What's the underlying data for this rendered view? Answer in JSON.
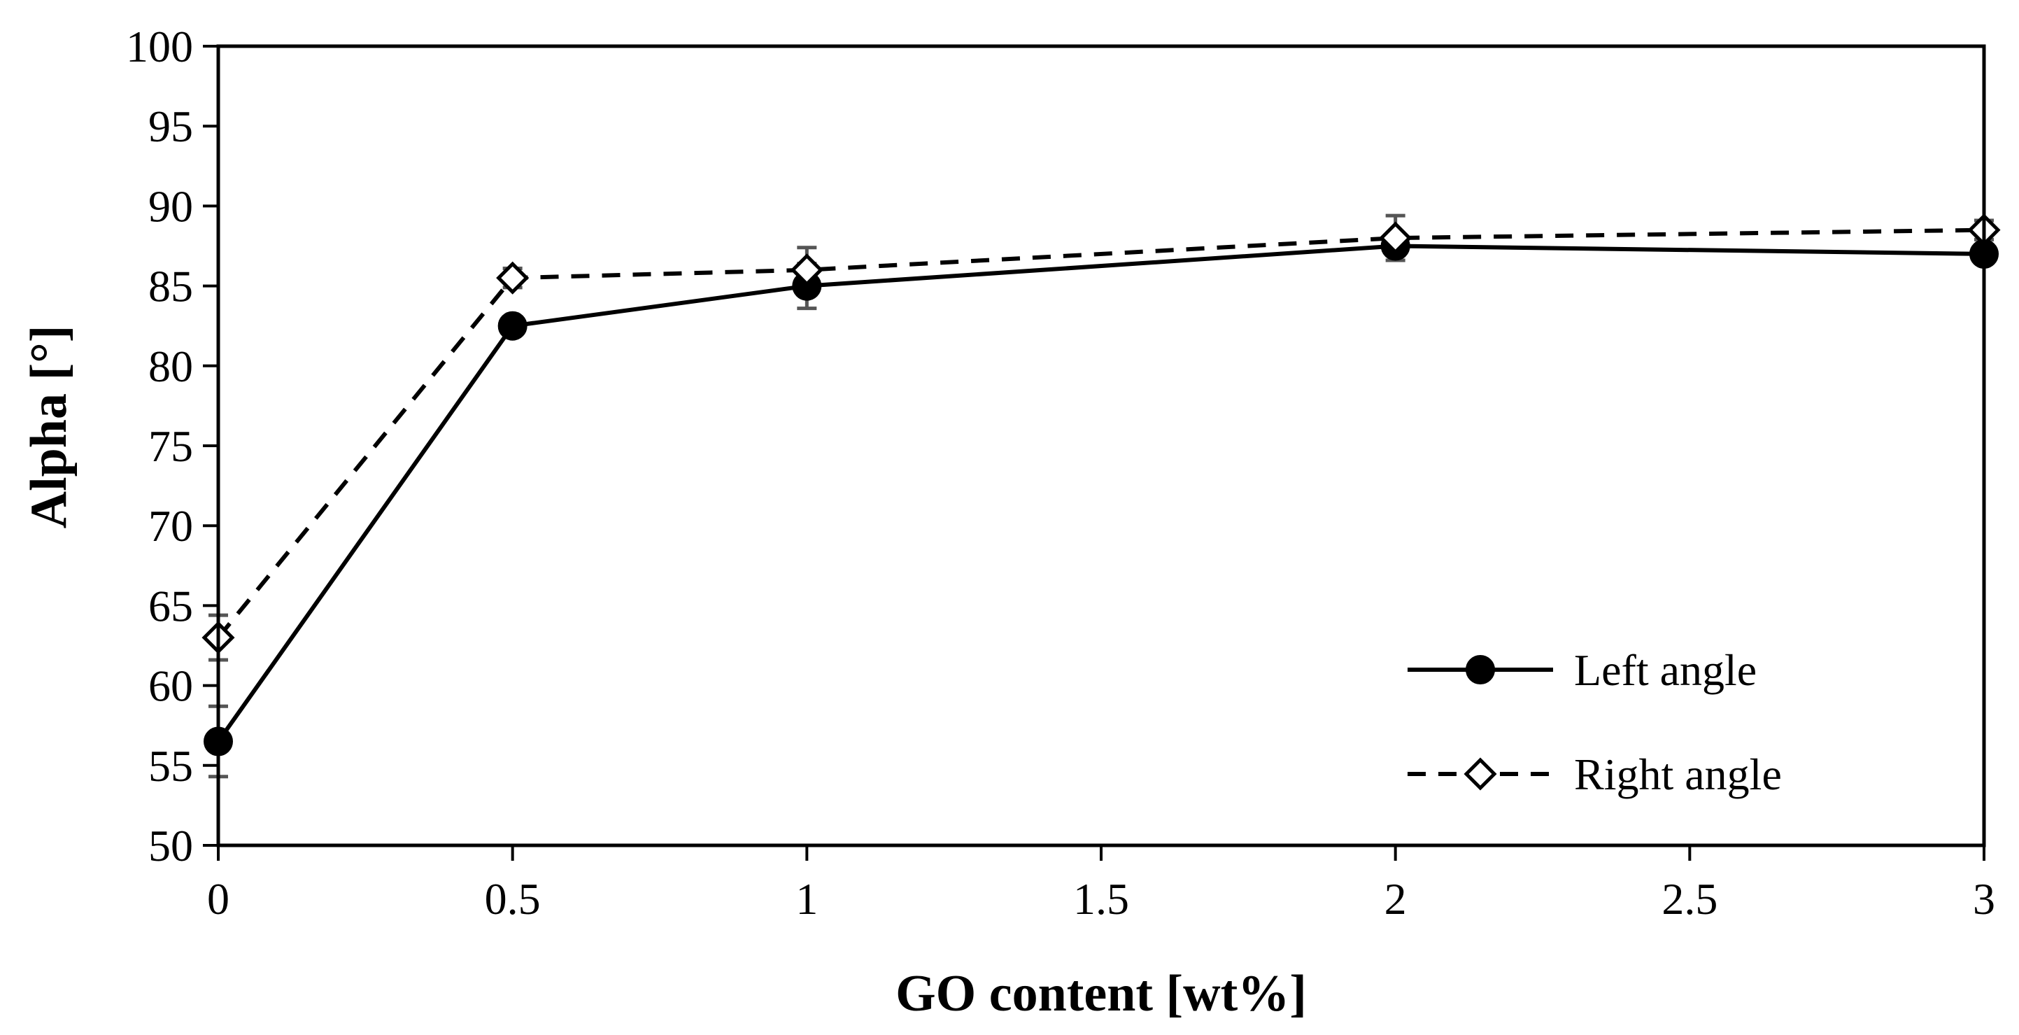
{
  "chart_data": {
    "type": "line",
    "title": "",
    "xlabel": "GO content [wt%]",
    "ylabel": "Alpha [°]",
    "xlim": [
      0,
      3
    ],
    "ylim": [
      50,
      100
    ],
    "x_ticks": [
      0,
      0.5,
      1,
      1.5,
      2,
      2.5,
      3
    ],
    "x_tick_labels": [
      "0",
      "0.5",
      "1",
      "1.5",
      "2",
      "2.5",
      "3"
    ],
    "y_ticks": [
      50,
      55,
      60,
      65,
      70,
      75,
      80,
      85,
      90,
      95,
      100
    ],
    "y_tick_labels": [
      "50",
      "55",
      "60",
      "65",
      "70",
      "75",
      "80",
      "85",
      "90",
      "95",
      "100"
    ],
    "grid": false,
    "legend_position": "bottom-right",
    "series": [
      {
        "name": "Left angle",
        "line_style": "solid",
        "marker": "filled-circle",
        "x": [
          0,
          0.5,
          1,
          2,
          3
        ],
        "y": [
          56.5,
          82.5,
          85.0,
          87.5,
          87.0
        ],
        "error": [
          2.2,
          0.5,
          1.4,
          0.6,
          0.3
        ]
      },
      {
        "name": "Right angle",
        "line_style": "dashed",
        "marker": "open-diamond",
        "x": [
          0,
          0.5,
          1,
          2,
          3
        ],
        "y": [
          63.0,
          85.5,
          86.0,
          88.0,
          88.5
        ],
        "error": [
          1.4,
          0.6,
          1.4,
          1.4,
          0.6
        ]
      }
    ]
  }
}
